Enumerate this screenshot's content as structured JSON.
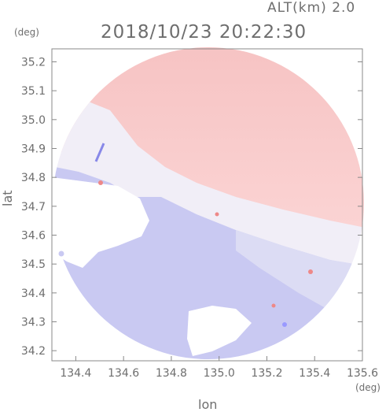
{
  "header": {
    "altitude_label": "ALT(km) 2.0",
    "datetime": "2018/10/23 20:22:30"
  },
  "axes": {
    "x_label": "lon",
    "y_label": "lat",
    "x_unit": "(deg)",
    "y_unit": "(deg)",
    "x_ticks": [
      "134.4",
      "134.6",
      "134.8",
      "135.0",
      "135.2",
      "135.4",
      "135.6"
    ],
    "y_ticks": [
      "35.2",
      "35.1",
      "35.0",
      "34.9",
      "34.8",
      "34.7",
      "34.6",
      "34.5",
      "34.4",
      "34.3",
      "34.2"
    ],
    "x_range": [
      134.3,
      135.6
    ],
    "y_range": [
      34.165,
      35.245
    ]
  },
  "colors": {
    "receding": "#f7c4c4",
    "approaching": "#c8c8f2",
    "neutral": "#f3f0f8",
    "axis": "#888888"
  }
}
